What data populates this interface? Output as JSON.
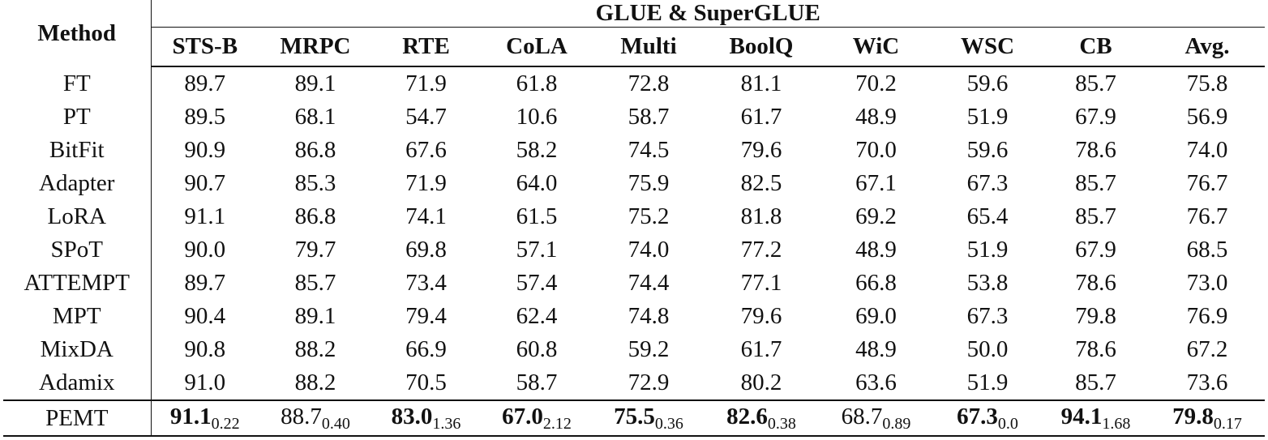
{
  "header": {
    "method_label": "Method",
    "group_label": "GLUE & SuperGLUE",
    "columns": [
      "STS-B",
      "MRPC",
      "RTE",
      "CoLA",
      "Multi",
      "BoolQ",
      "WiC",
      "WSC",
      "CB",
      "Avg."
    ]
  },
  "rows": [
    {
      "method": "FT",
      "values": [
        "89.7",
        "89.1",
        "71.9",
        "61.8",
        "72.8",
        "81.1",
        "70.2",
        "59.6",
        "85.7",
        "75.8"
      ],
      "bold": [
        1,
        6
      ]
    },
    {
      "method": "PT",
      "values": [
        "89.5",
        "68.1",
        "54.7",
        "10.6",
        "58.7",
        "61.7",
        "48.9",
        "51.9",
        "67.9",
        "56.9"
      ],
      "bold": []
    },
    {
      "method": "BitFit",
      "values": [
        "90.9",
        "86.8",
        "67.6",
        "58.2",
        "74.5",
        "79.6",
        "70.0",
        "59.6",
        "78.6",
        "74.0"
      ],
      "bold": []
    },
    {
      "method": "Adapter",
      "values": [
        "90.7",
        "85.3",
        "71.9",
        "64.0",
        "75.9",
        "82.5",
        "67.1",
        "67.3",
        "85.7",
        "76.7"
      ],
      "bold": [
        7
      ]
    },
    {
      "method": "LoRA",
      "values": [
        "91.1",
        "86.8",
        "74.1",
        "61.5",
        "75.2",
        "81.8",
        "69.2",
        "65.4",
        "85.7",
        "76.7"
      ],
      "bold": [
        0
      ]
    },
    {
      "method": "SPoT",
      "values": [
        "90.0",
        "79.7",
        "69.8",
        "57.1",
        "74.0",
        "77.2",
        "48.9",
        "51.9",
        "67.9",
        "68.5"
      ],
      "bold": []
    },
    {
      "method": "ATTEMPT",
      "values": [
        "89.7",
        "85.7",
        "73.4",
        "57.4",
        "74.4",
        "77.1",
        "66.8",
        "53.8",
        "78.6",
        "73.0"
      ],
      "bold": []
    },
    {
      "method": "MPT",
      "values": [
        "90.4",
        "89.1",
        "79.4",
        "62.4",
        "74.8",
        "79.6",
        "69.0",
        "67.3",
        "79.8",
        "76.9"
      ],
      "bold": [
        1,
        7
      ]
    },
    {
      "method": "MixDA",
      "values": [
        "90.8",
        "88.2",
        "66.9",
        "60.8",
        "59.2",
        "61.7",
        "48.9",
        "50.0",
        "78.6",
        "67.2"
      ],
      "bold": []
    },
    {
      "method": "Adamix",
      "values": [
        "91.0",
        "88.2",
        "70.5",
        "58.7",
        "72.9",
        "80.2",
        "63.6",
        "51.9",
        "85.7",
        "73.6"
      ],
      "bold": []
    }
  ],
  "pemt": {
    "method": "PEMT",
    "values": [
      "91.1",
      "88.7",
      "83.0",
      "67.0",
      "75.5",
      "82.6",
      "68.7",
      "67.3",
      "94.1",
      "79.8"
    ],
    "stds": [
      "0.22",
      "0.40",
      "1.36",
      "2.12",
      "0.36",
      "0.38",
      "0.89",
      "0.0",
      "1.68",
      "0.17"
    ],
    "bold": [
      0,
      2,
      3,
      4,
      5,
      7,
      8,
      9
    ]
  }
}
